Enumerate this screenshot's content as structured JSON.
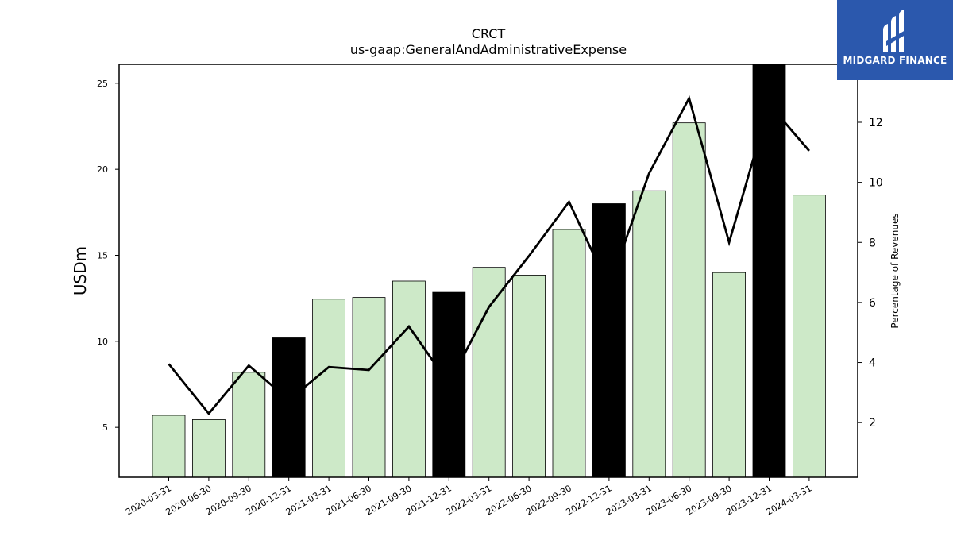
{
  "chart_data": {
    "type": "bar",
    "title": "CRCT",
    "subtitle": "us-gaap:GeneralAndAdministrativeExpense",
    "ylabel": "USDm",
    "y2label": "Percentage of Revenues",
    "categories": [
      "2020-03-31",
      "2020-06-30",
      "2020-09-30",
      "2020-12-31",
      "2021-03-31",
      "2021-06-30",
      "2021-09-30",
      "2021-12-31",
      "2022-03-31",
      "2022-06-30",
      "2022-09-30",
      "2022-12-31",
      "2023-03-31",
      "2023-06-30",
      "2023-09-30",
      "2023-12-31",
      "2024-03-31"
    ],
    "series": [
      {
        "type": "bar",
        "values": [
          5.7,
          5.45,
          8.2,
          10.2,
          12.45,
          12.55,
          13.5,
          12.85,
          14.3,
          13.85,
          16.5,
          18.0,
          18.75,
          22.7,
          14.0,
          26.1,
          18.5
        ],
        "highlighted": [
          false,
          false,
          false,
          true,
          false,
          false,
          false,
          true,
          false,
          false,
          false,
          true,
          false,
          false,
          false,
          true,
          false
        ],
        "color": "#cde9c8",
        "highlight_color": "#000000"
      },
      {
        "type": "line",
        "axis": "right",
        "values": [
          3.95,
          2.3,
          3.9,
          2.75,
          3.85,
          3.75,
          5.2,
          3.3,
          5.85,
          7.55,
          9.35,
          6.5,
          10.3,
          12.8,
          8.0,
          12.6,
          11.05
        ],
        "color": "#000000"
      }
    ],
    "ylim": [
      2.1,
      26.1
    ],
    "y2lim": [
      0.18,
      13.93
    ],
    "yticks": [
      5,
      10,
      15,
      20,
      25
    ],
    "y2ticks": [
      2,
      4,
      6,
      8,
      10,
      12
    ],
    "grid": false
  },
  "logo": {
    "text": "MIDGARD FINANCE",
    "background": "#2b58ad"
  }
}
